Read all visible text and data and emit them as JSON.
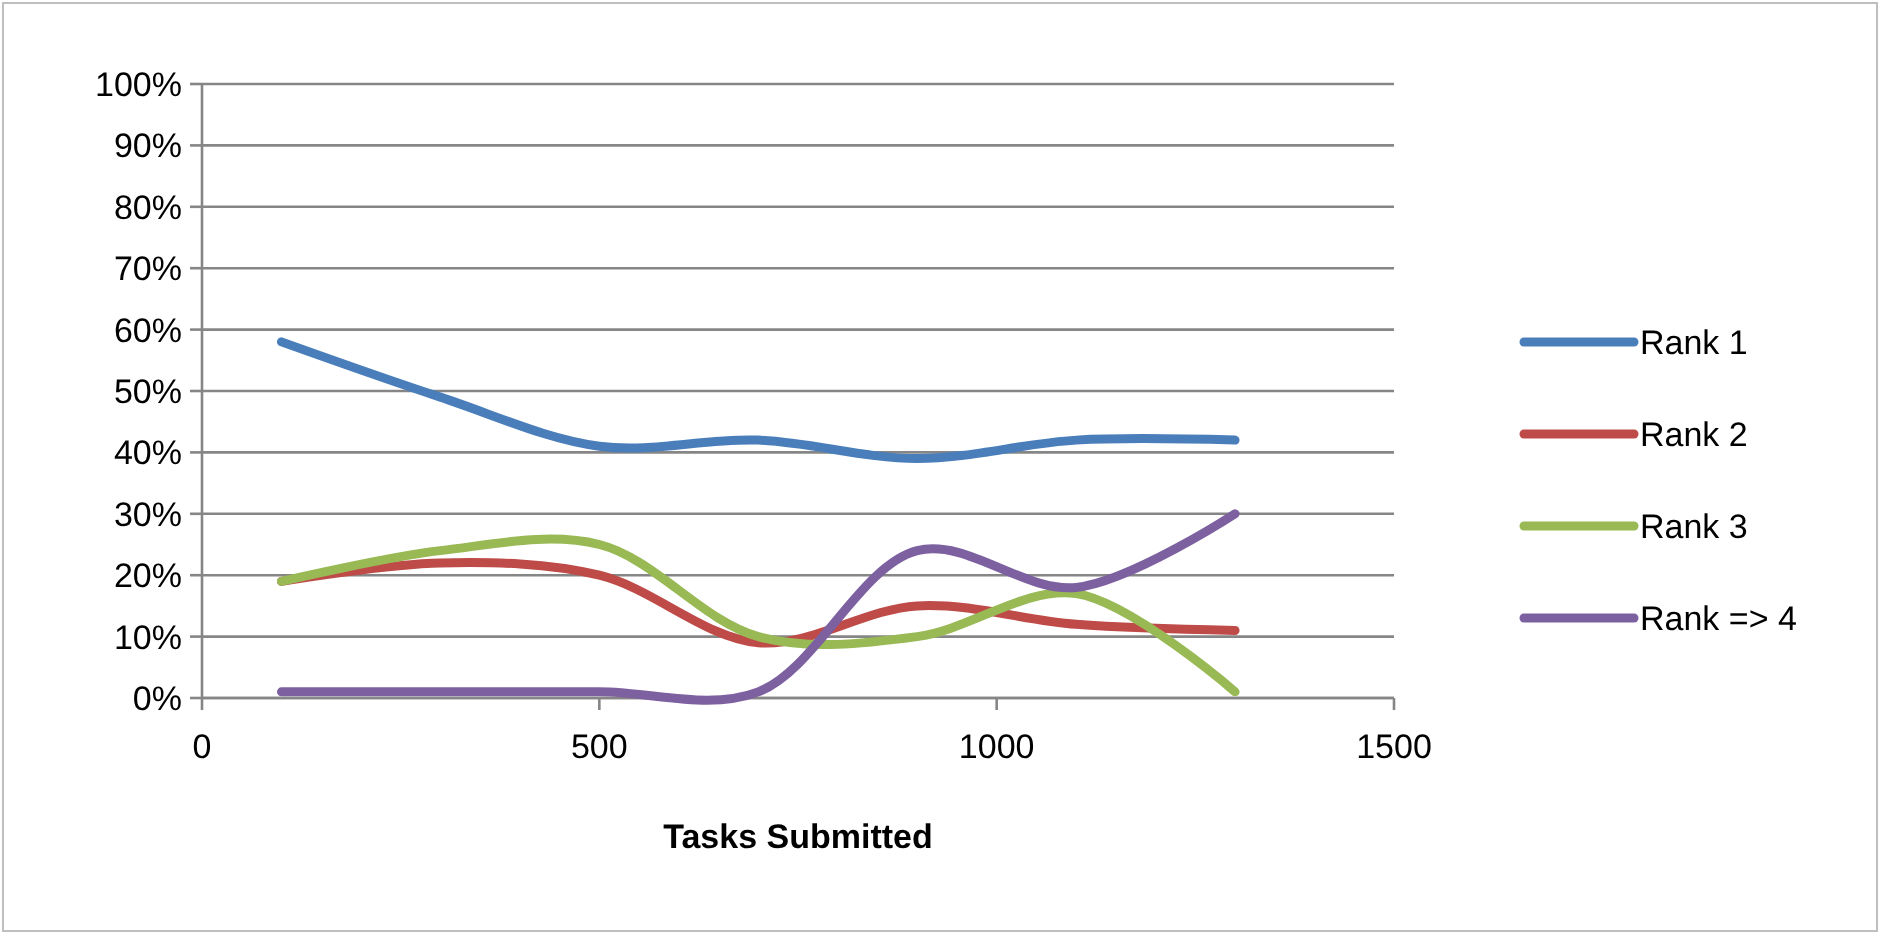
{
  "chart_data": {
    "type": "line",
    "xlabel": "Tasks Submitted",
    "x": [
      100,
      300,
      500,
      700,
      900,
      1100,
      1300
    ],
    "series": [
      {
        "name": "Rank 1",
        "color": "#4a7ebb",
        "values": [
          58,
          49,
          41,
          42,
          39,
          42,
          42
        ]
      },
      {
        "name": "Rank 2",
        "color": "#be4b48",
        "values": [
          19,
          22,
          20,
          9,
          15,
          12,
          11
        ]
      },
      {
        "name": "Rank 3",
        "color": "#98b954",
        "values": [
          19,
          24,
          25,
          10,
          10,
          17,
          1
        ]
      },
      {
        "name": "Rank => 4",
        "color": "#7d60a0",
        "values": [
          1,
          1,
          1,
          1,
          24,
          18,
          30
        ]
      }
    ],
    "xlim": [
      0,
      1500
    ],
    "xticks": [
      0,
      500,
      1000,
      1500
    ],
    "ylim": [
      0,
      100
    ],
    "yticks": [
      {
        "value": 0,
        "label": "0%"
      },
      {
        "value": 10,
        "label": "10%"
      },
      {
        "value": 20,
        "label": "20%"
      },
      {
        "value": 30,
        "label": "30%"
      },
      {
        "value": 40,
        "label": "40%"
      },
      {
        "value": 50,
        "label": "50%"
      },
      {
        "value": 60,
        "label": "60%"
      },
      {
        "value": 70,
        "label": "70%"
      },
      {
        "value": 80,
        "label": "80%"
      },
      {
        "value": 90,
        "label": "90%"
      },
      {
        "value": 100,
        "label": "100%"
      }
    ],
    "grid": "y",
    "legend": "right",
    "marker": "none",
    "line_style": "solid"
  }
}
